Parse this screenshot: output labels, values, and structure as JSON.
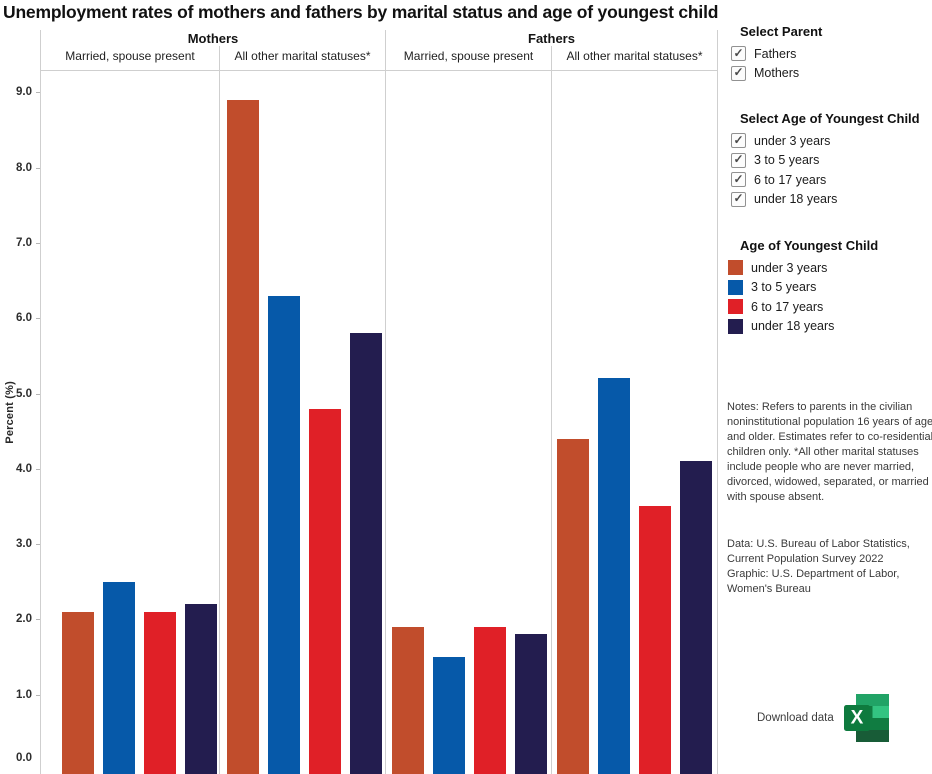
{
  "title": "Unemployment rates of mothers and fathers by marital status and age of youngest child",
  "chart_data": {
    "type": "bar",
    "title": "Unemployment rates of mothers and fathers by marital status and age of youngest child",
    "ylabel": "Percent (%)",
    "ylim": [
      0,
      9.3
    ],
    "ytick_labels": [
      "0.0",
      "1.0",
      "2.0",
      "3.0",
      "4.0",
      "5.0",
      "6.0",
      "7.0",
      "8.0",
      "9.0"
    ],
    "grid": false,
    "legend_position": "right",
    "series_names": [
      "under 3 years",
      "3 to 5 years",
      "6 to 17 years",
      "under 18 years"
    ],
    "series_colors": [
      "#C14D2C",
      "#0659A9",
      "#E02027",
      "#231D4F"
    ],
    "panel_groups": [
      {
        "parent": "Mothers",
        "columns": [
          {
            "label": "Married, spouse present",
            "values": [
              2.1,
              2.5,
              2.1,
              2.2
            ]
          },
          {
            "label": "All other marital statuses*",
            "values": [
              8.9,
              6.3,
              4.8,
              5.8
            ]
          }
        ]
      },
      {
        "parent": "Fathers",
        "columns": [
          {
            "label": "Married, spouse present",
            "values": [
              1.9,
              1.5,
              1.9,
              1.8
            ]
          },
          {
            "label": "All other marital statuses*",
            "values": [
              4.4,
              5.2,
              3.5,
              4.1
            ]
          }
        ]
      }
    ]
  },
  "filters": {
    "parent": {
      "heading": "Select Parent",
      "options": [
        {
          "label": "Fathers",
          "checked": true
        },
        {
          "label": "Mothers",
          "checked": true
        }
      ]
    },
    "age": {
      "heading": "Select Age of Youngest Child",
      "options": [
        {
          "label": "under 3 years",
          "checked": true
        },
        {
          "label": "3 to 5 years",
          "checked": true
        },
        {
          "label": "6 to 17 years",
          "checked": true
        },
        {
          "label": "under 18 years",
          "checked": true
        }
      ]
    }
  },
  "legend": {
    "heading": "Age of Youngest Child",
    "items": [
      {
        "label": "under 3 years"
      },
      {
        "label": "3 to 5 years"
      },
      {
        "label": "6 to 17 years"
      },
      {
        "label": "under 18 years"
      }
    ]
  },
  "notes": {
    "notes_text": "Notes: Refers to parents in the civilian noninstitutional population 16 years of age and older. Estimates refer to co-residential children only. *All other marital statuses include people who are never married, divorced, widowed, separated, or married with spouse absent.",
    "data_source": "Data: U.S. Bureau of Labor Statistics, Current Population Survey 2022",
    "graphic_source": "Graphic: U.S. Department of Labor, Women's Bureau"
  },
  "download": {
    "label": "Download data",
    "icon": "excel-icon"
  }
}
